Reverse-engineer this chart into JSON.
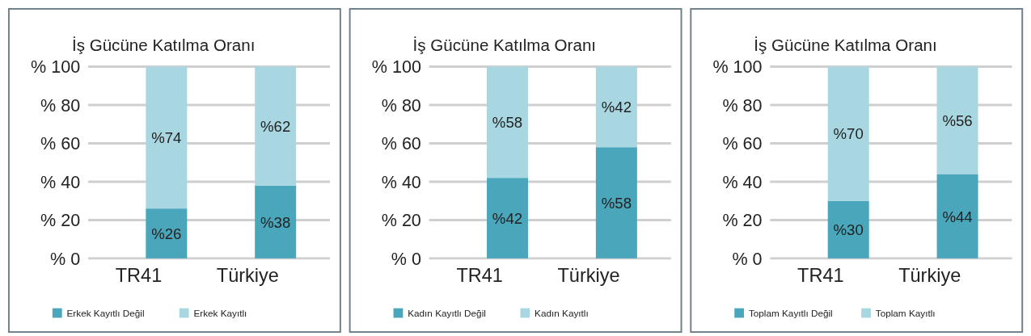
{
  "chart_data": [
    {
      "type": "bar",
      "title": "İş Gücüne Katılma Oranı",
      "categories": [
        "TR41",
        "Türkiye"
      ],
      "stacked": true,
      "series": [
        {
          "name": "Erkek Kayıtlı Değil",
          "color": "#4aa6bb",
          "values": [
            26,
            38
          ],
          "value_labels": [
            "%26",
            "%38"
          ]
        },
        {
          "name": "Erkek Kayıtlı",
          "color": "#a8d7e2",
          "values": [
            74,
            62
          ],
          "value_labels": [
            "%74",
            "%62"
          ]
        }
      ],
      "ylim": [
        0,
        100
      ],
      "yticks": [
        {
          "value": 0,
          "label": "% 0"
        },
        {
          "value": 20,
          "label": "% 20"
        },
        {
          "value": 40,
          "label": "% 40"
        },
        {
          "value": 60,
          "label": "% 60"
        },
        {
          "value": 80,
          "label": "% 80"
        },
        {
          "value": 100,
          "label": "% 100"
        }
      ],
      "grid": "y",
      "legend": "bottom"
    },
    {
      "type": "bar",
      "title": "İş Gücüne Katılma Oranı",
      "categories": [
        "TR41",
        "Türkiye"
      ],
      "stacked": true,
      "series": [
        {
          "name": "Kadın Kayıtlı Değil",
          "color": "#4aa6bb",
          "values": [
            42,
            58
          ],
          "value_labels": [
            "%42",
            "%58"
          ]
        },
        {
          "name": "Kadın Kayıtlı",
          "color": "#a8d7e2",
          "values": [
            58,
            42
          ],
          "value_labels": [
            "%58",
            "%42"
          ]
        }
      ],
      "ylim": [
        0,
        100
      ],
      "yticks": [
        {
          "value": 0,
          "label": "% 0"
        },
        {
          "value": 20,
          "label": "% 20"
        },
        {
          "value": 40,
          "label": "% 40"
        },
        {
          "value": 60,
          "label": "% 60"
        },
        {
          "value": 80,
          "label": "% 80"
        },
        {
          "value": 100,
          "label": "% 100"
        }
      ],
      "grid": "y",
      "legend": "bottom"
    },
    {
      "type": "bar",
      "title": "İş Gücüne Katılma Oranı",
      "categories": [
        "TR41",
        "Türkiye"
      ],
      "stacked": true,
      "series": [
        {
          "name": "Toplam Kayıtlı Değil",
          "color": "#4aa6bb",
          "values": [
            30,
            44
          ],
          "value_labels": [
            "%30",
            "%44"
          ]
        },
        {
          "name": "Toplam Kayıtlı",
          "color": "#a8d7e2",
          "values": [
            70,
            56
          ],
          "value_labels": [
            "%70",
            "%56"
          ]
        }
      ],
      "ylim": [
        0,
        100
      ],
      "yticks": [
        {
          "value": 0,
          "label": "% 0"
        },
        {
          "value": 20,
          "label": "% 20"
        },
        {
          "value": 40,
          "label": "% 40"
        },
        {
          "value": 60,
          "label": "% 60"
        },
        {
          "value": 80,
          "label": "% 80"
        },
        {
          "value": 100,
          "label": "% 100"
        }
      ],
      "grid": "y",
      "legend": "bottom"
    }
  ]
}
